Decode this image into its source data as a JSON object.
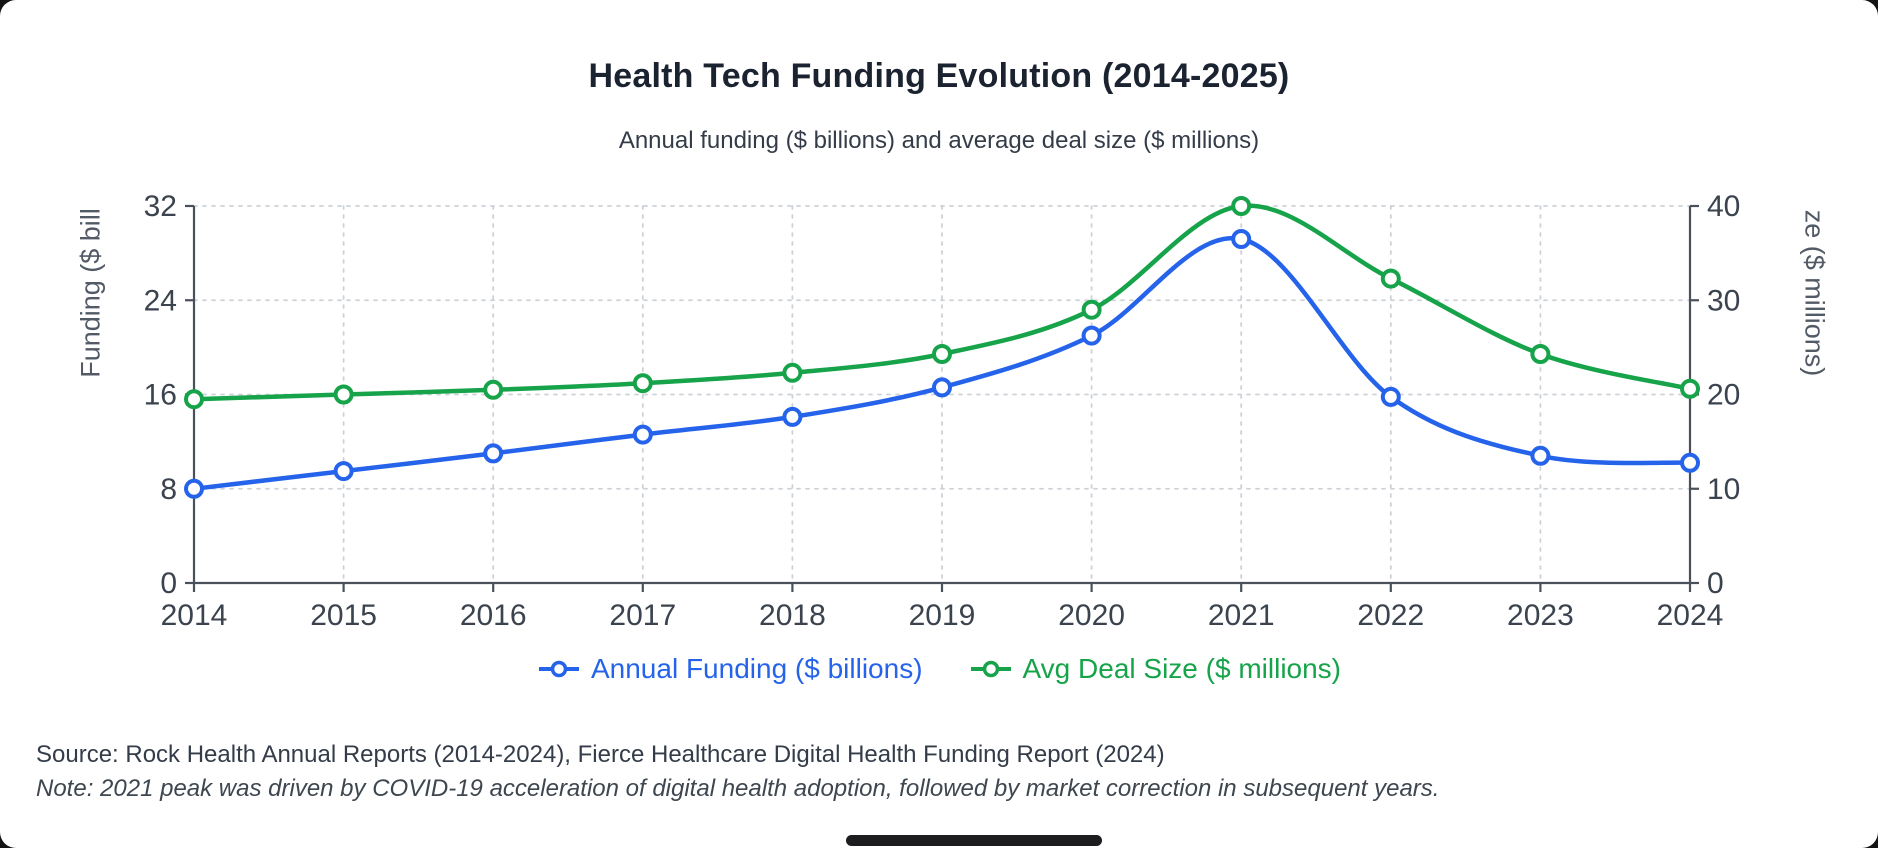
{
  "page": {
    "source": "Source: Rock Health Annual Reports (2014-2024), Fierce Healthcare Digital Health Funding Report (2024)",
    "note": "Note: 2021 peak was driven by COVID-19 acceleration of digital health adoption, followed by market correction in subsequent years."
  },
  "chart_data": {
    "type": "line",
    "title": "Health Tech Funding Evolution (2014-2025)",
    "subtitle": "Annual funding ($ billions) and average deal size ($ millions)",
    "categories": [
      "2014",
      "2015",
      "2016",
      "2017",
      "2018",
      "2019",
      "2020",
      "2021",
      "2022",
      "2023",
      "2024"
    ],
    "series": [
      {
        "name": "Annual Funding ($ billions)",
        "axis": "left",
        "color": "#2563eb",
        "values": [
          8.0,
          9.5,
          11.0,
          12.6,
          14.1,
          16.6,
          21.0,
          29.2,
          15.8,
          10.8,
          10.2
        ]
      },
      {
        "name": "Avg Deal Size ($ millions)",
        "axis": "right",
        "color": "#16a34a",
        "values": [
          19.5,
          20.0,
          20.5,
          21.2,
          22.3,
          24.3,
          29.0,
          40.0,
          32.3,
          24.3,
          20.6
        ]
      }
    ],
    "left_axis": {
      "label": "Funding ($ bill",
      "ticks": [
        0,
        8,
        16,
        24,
        32
      ],
      "max": 32
    },
    "right_axis": {
      "label": "ze ($ millions)",
      "ticks": [
        0,
        10,
        20,
        30,
        40
      ],
      "max": 40
    },
    "grid": true,
    "legend_position": "bottom",
    "marker_fill": "#ffffff"
  }
}
